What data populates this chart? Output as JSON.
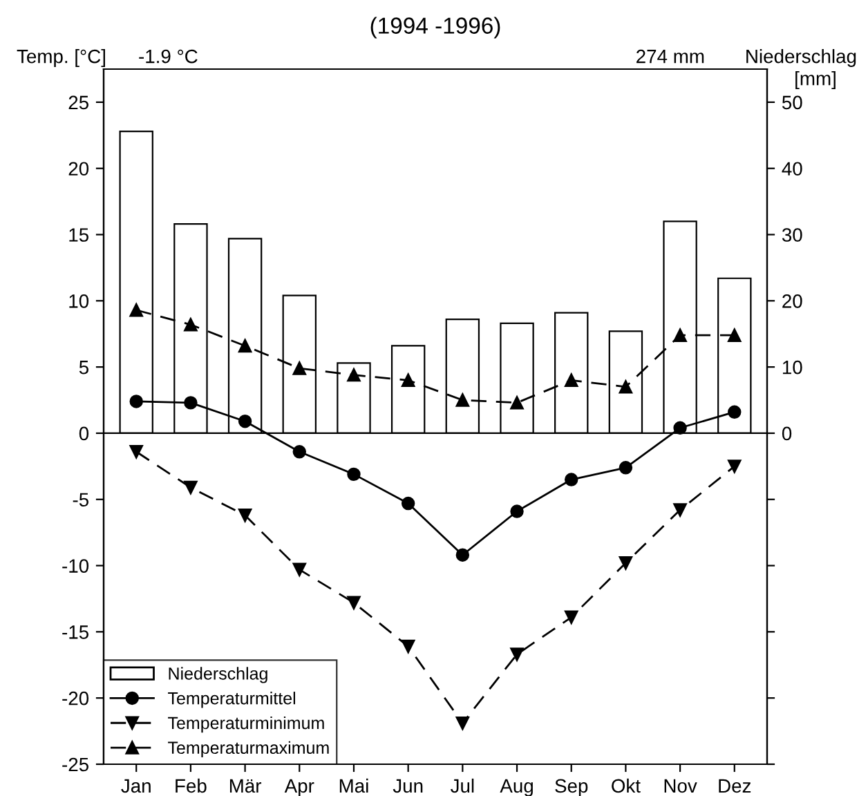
{
  "chart_data": {
    "type": "line",
    "title": "(1994 -1996)",
    "ylabel": "Temp. [°C]",
    "y2label": "Niederschlag\n[mm]",
    "annotations": [
      "-1.9 °C",
      "274 mm"
    ],
    "categories": [
      "Jan",
      "Feb",
      "Mär",
      "Apr",
      "Mai",
      "Jun",
      "Jul",
      "Aug",
      "Sep",
      "Okt",
      "Nov",
      "Dez"
    ],
    "series": [
      {
        "name": "Niederschlag",
        "type": "bar",
        "axis": "y2",
        "color": "#ffffff",
        "values": [
          45.6,
          31.6,
          29.4,
          20.8,
          10.6,
          13.2,
          17.2,
          16.6,
          18.2,
          15.4,
          32,
          23.4
        ]
      },
      {
        "name": "Temperaturmittel",
        "color": "#000000",
        "marker": "circle",
        "line_style": "solid",
        "values": [
          2.4,
          2.3,
          0.9,
          -1.4,
          -3.1,
          -5.3,
          -9.2,
          -5.9,
          -3.5,
          -2.6,
          0.4,
          1.6
        ]
      },
      {
        "name": "Temperaturminimum",
        "color": "#000000",
        "marker": "triangle_down",
        "line_style": "dashed",
        "values": [
          -1.4,
          -4.1,
          -6.2,
          -10.3,
          -12.8,
          -16.1,
          -21.9,
          -16.7,
          -13.9,
          -9.8,
          -5.8,
          -2.5
        ]
      },
      {
        "name": "Temperaturmaximum",
        "color": "#000000",
        "marker": "triangle",
        "line_style": "dashed",
        "values": [
          9.3,
          8.2,
          6.6,
          4.9,
          4.4,
          4.0,
          2.5,
          2.3,
          4.0,
          3.5,
          7.4,
          7.4
        ]
      }
    ],
    "ylim": [
      -25,
      27.5
    ],
    "yticks": [
      -25,
      -20,
      -15,
      -10,
      -5,
      0,
      5,
      10,
      15,
      20,
      25
    ],
    "y2lim": [
      -50,
      55
    ],
    "y2ticks": [
      {
        "value": -50,
        "label": null
      },
      {
        "value": -40,
        "label": null
      },
      {
        "value": -30,
        "label": null
      },
      {
        "value": -20,
        "label": null
      },
      {
        "value": -10,
        "label": null
      },
      0,
      10,
      20,
      30,
      40,
      50
    ],
    "ref_lines": [
      {
        "axis": "y",
        "value": 0,
        "color": "#000000",
        "line_style": "solid"
      }
    ],
    "legend": "bottom left",
    "grid": false
  }
}
